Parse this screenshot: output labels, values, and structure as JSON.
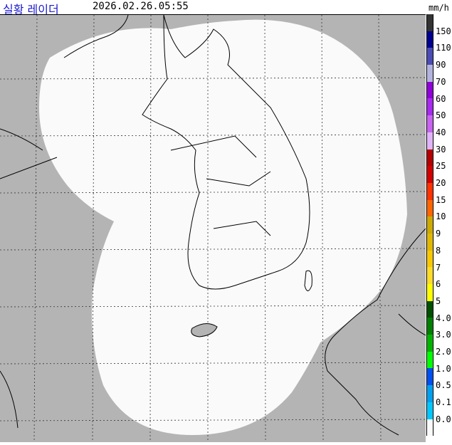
{
  "header": {
    "title": "실황 레이더",
    "timestamp": "2026.02.26.05:55",
    "unit": "mm/h"
  },
  "map": {
    "background_color": "#b4b4b4",
    "coverage_color": "#fafafa",
    "coastline_color": "#000000"
  },
  "legend": {
    "labels": [
      "150",
      "110",
      "90",
      "70",
      "60",
      "50",
      "40",
      "30",
      "25",
      "20",
      "15",
      "10",
      "9",
      "8",
      "7",
      "6",
      "5",
      "4.0",
      "3.0",
      "2.0",
      "1.0",
      "0.5",
      "0.1",
      "0.0"
    ],
    "colors": [
      "#333333",
      "#000090",
      "#4c4cb4",
      "#b3b4de",
      "#9000d8",
      "#a82af0",
      "#c864f0",
      "#e0b4f8",
      "#b40000",
      "#d20000",
      "#ff3200",
      "#ff6600",
      "#ccaa00",
      "#e0b800",
      "#f8c800",
      "#ffdc28",
      "#ffff00",
      "#005000",
      "#008000",
      "#00b400",
      "#00ff00",
      "#0050f0",
      "#00a0f0",
      "#00c8ff",
      "#fafafa"
    ]
  }
}
